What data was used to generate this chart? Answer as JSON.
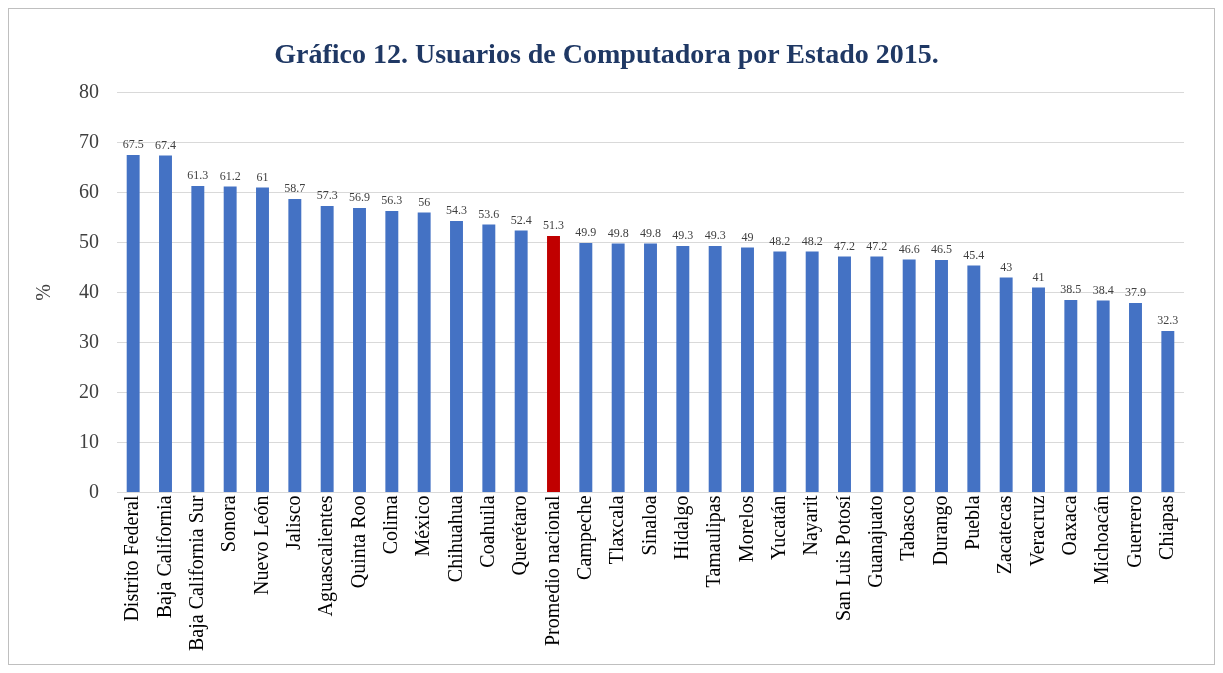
{
  "chart_data": {
    "type": "bar",
    "title": "Gráfico 12. Usuarios de Computadora por Estado 2015.",
    "ylabel": "%",
    "categories": [
      "Distrito Federal",
      "Baja California",
      "Baja California Sur",
      "Sonora",
      "Nuevo León",
      "Jalisco",
      "Aguascalientes",
      "Quinta Roo",
      "Colima",
      "México",
      "Chihuahua",
      "Coahuila",
      "Querétaro",
      "Promedio nacional",
      "Campeche",
      "Tlaxcala",
      "Sinaloa",
      "Hidalgo",
      "Tamaulipas",
      "Morelos",
      "Yucatán",
      "Nayarit",
      "San Luis Potosí",
      "Guanajuato",
      "Tabasco",
      "Durango",
      "Puebla",
      "Zacatecas",
      "Veracruz",
      "Oaxaca",
      "Michoacán",
      "Guerrero",
      "Chiapas"
    ],
    "values": [
      67.5,
      67.4,
      61.3,
      61.2,
      61,
      58.7,
      57.3,
      56.9,
      56.3,
      56,
      54.3,
      53.6,
      52.4,
      51.3,
      49.9,
      49.8,
      49.8,
      49.3,
      49.3,
      49,
      48.2,
      48.2,
      47.2,
      47.2,
      46.6,
      46.5,
      45.4,
      43,
      41,
      38.5,
      38.4,
      37.9,
      32.3
    ],
    "colors": [
      "#4472c4",
      "#4472c4",
      "#4472c4",
      "#4472c4",
      "#4472c4",
      "#4472c4",
      "#4472c4",
      "#4472c4",
      "#4472c4",
      "#4472c4",
      "#4472c4",
      "#4472c4",
      "#4472c4",
      "#c00000",
      "#4472c4",
      "#4472c4",
      "#4472c4",
      "#4472c4",
      "#4472c4",
      "#4472c4",
      "#4472c4",
      "#4472c4",
      "#4472c4",
      "#4472c4",
      "#4472c4",
      "#4472c4",
      "#4472c4",
      "#4472c4",
      "#4472c4",
      "#4472c4",
      "#4472c4",
      "#4472c4",
      "#4472c4"
    ],
    "ylim": [
      0,
      80
    ],
    "yticks": [
      0,
      10,
      20,
      30,
      40,
      50,
      60,
      70,
      80
    ],
    "grid": "y",
    "data_labels": true,
    "legend": false
  }
}
